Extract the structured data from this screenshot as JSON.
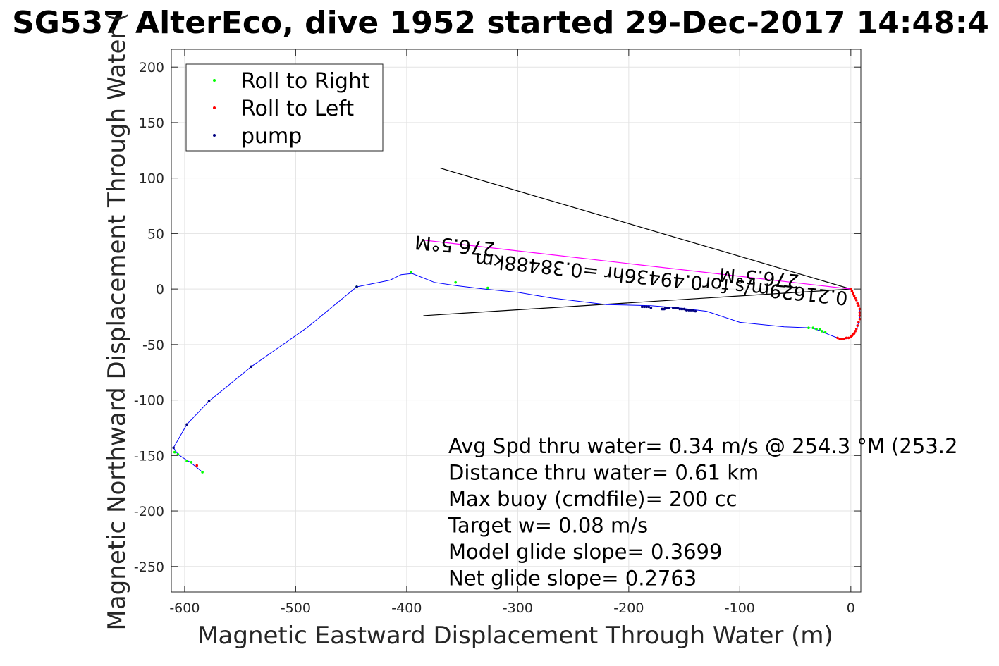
{
  "chart_data": {
    "type": "line",
    "title": "SG537 AlterEco, dive 1952 started 29-Dec-2017 14:48:4",
    "xlabel": "Magnetic Eastward Displacement Through Water (m)",
    "ylabel": "Magnetic Northward Displacement Through Water (",
    "xlim": [
      -612,
      9
    ],
    "ylim": [
      -273,
      216
    ],
    "xticks": [
      -600,
      -500,
      -400,
      -300,
      -200,
      -100,
      0
    ],
    "xtick_labels": [
      "-600",
      "-500",
      "-400",
      "-300",
      "-200",
      "-100",
      "0"
    ],
    "yticks": [
      -250,
      -200,
      -150,
      -100,
      -50,
      0,
      50,
      100,
      150,
      200
    ],
    "ytick_labels": [
      "-250",
      "-200",
      "-150",
      "-100",
      "-50",
      "0",
      "50",
      "100",
      "150",
      "200"
    ],
    "grid": true,
    "legend_position": "top-left",
    "legend": [
      {
        "label": "Roll to Right",
        "color": "#00ff00"
      },
      {
        "label": "Roll to Left",
        "color": "#ff0000"
      },
      {
        "label": "pump",
        "color": "#000080"
      }
    ],
    "track": {
      "color": "#0000ff",
      "x": [
        0,
        3,
        6,
        8,
        8,
        6,
        3,
        0,
        -6,
        -12,
        -20,
        -26,
        -36,
        -60,
        -100,
        -130,
        -155,
        -180,
        -220,
        -270,
        -300,
        -330,
        -355,
        -375,
        -395,
        -405,
        -415,
        -445,
        -490,
        -540,
        -578,
        -598,
        -610,
        -606,
        -600,
        -595,
        -590,
        -584
      ],
      "y": [
        0,
        -6,
        -12,
        -18,
        -26,
        -34,
        -40,
        -44,
        -45,
        -44,
        -41,
        -38,
        -35,
        -34,
        -30,
        -20,
        -17,
        -15,
        -14,
        -8,
        -3,
        0,
        3,
        6,
        14,
        13,
        8,
        2,
        -35,
        -70,
        -101,
        -122,
        -143,
        -149,
        -153,
        -156,
        -160,
        -165
      ]
    },
    "roll_right_points": {
      "color": "#00ff00",
      "x": [
        -38,
        -34,
        -31,
        -28,
        -26,
        -23,
        -396,
        -356,
        -327,
        -445,
        -609,
        -606,
        -598,
        -594,
        -584
      ],
      "y": [
        -35,
        -35,
        -36,
        -36,
        -38,
        -39,
        15,
        6,
        1,
        2,
        -147,
        -149,
        -155,
        -156,
        -165
      ]
    },
    "roll_left_points": {
      "color": "#ff0000",
      "x": [
        0,
        1,
        2,
        3,
        4,
        5,
        6,
        7,
        8,
        8,
        8,
        8,
        7,
        6,
        5,
        4,
        3,
        2,
        1,
        0,
        -2,
        -4,
        -6,
        -8,
        -10,
        -12,
        -589
      ],
      "y": [
        0,
        -2,
        -4,
        -6,
        -8,
        -10,
        -13,
        -15,
        -18,
        -21,
        -24,
        -27,
        -30,
        -33,
        -36,
        -38,
        -40,
        -41,
        -42,
        -43,
        -44,
        -44,
        -45,
        -45,
        -45,
        -44,
        -159
      ]
    },
    "pump_points": {
      "color": "#000080",
      "x": [
        -188,
        -186,
        -184,
        -182,
        -180,
        -170,
        -169,
        -168,
        -167,
        -166,
        -165,
        -164,
        -160,
        -158,
        -156,
        -154,
        -152,
        -150,
        -148,
        -146,
        -144,
        -142,
        -140,
        -540,
        -578,
        -598,
        -610,
        -445
      ],
      "y": [
        -16,
        -16,
        -16,
        -16,
        -17,
        -18,
        -18,
        -18,
        -17,
        -17,
        -17,
        -17,
        -17,
        -17,
        -17,
        -18,
        -18,
        -18,
        -19,
        -19,
        -19,
        -19,
        -20,
        -70,
        -101,
        -122,
        -143,
        2
      ]
    },
    "guide_lines": [
      {
        "from": [
          0,
          0
        ],
        "to": [
          -370,
          109
        ],
        "color": "#000000"
      },
      {
        "from": [
          0,
          0
        ],
        "to": [
          -385,
          -24
        ],
        "color": "#000000"
      },
      {
        "from": [
          0,
          0
        ],
        "to": [
          -384,
          44
        ],
        "color": "#ff00ff"
      }
    ],
    "rotated_labels": [
      {
        "text": "0.21629m/s for0.49436hr =0.38488km",
        "at": [
          -170,
          15
        ]
      },
      {
        "text": "276.5°M",
        "at": [
          -356,
          45
        ]
      },
      {
        "text": "276.5°M",
        "at": [
          -82,
          16
        ]
      }
    ],
    "annotations": [
      "Avg Spd thru water=  0.34 m/s @ 254.3 °M (253.2",
      "Distance thru water=  0.61 km",
      "Max buoy (cmdfile)= 200 cc",
      "Target w= 0.08 m/s",
      "Model glide slope= 0.3699",
      "Net glide slope= 0.2763"
    ]
  }
}
